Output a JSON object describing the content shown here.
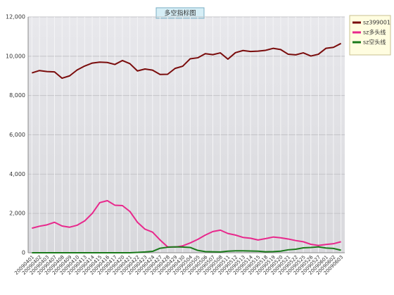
{
  "chart_data": {
    "type": "line",
    "title": "多空指标图",
    "categories": [
      "20090401",
      "20090402",
      "20090403",
      "20090407",
      "20090408",
      "20090409",
      "20090410",
      "20090413",
      "20090414",
      "20090415",
      "20090416",
      "20090417",
      "20090420",
      "20090421",
      "20090422",
      "20090423",
      "20090424",
      "20090427",
      "20090428",
      "20090429",
      "20090430",
      "20090504",
      "20090505",
      "20090506",
      "20090507",
      "20090508",
      "20090511",
      "20090512",
      "20090513",
      "20090514",
      "20090515",
      "20090518",
      "20090519",
      "20090520",
      "20090521",
      "20090522",
      "20090525",
      "20090526",
      "20090527",
      "20090601",
      "20090602",
      "20090603"
    ],
    "series": [
      {
        "name": "sz399001",
        "color": "#7a0c0c",
        "values": [
          9150,
          9270,
          9220,
          9200,
          8880,
          9000,
          9300,
          9500,
          9650,
          9700,
          9680,
          9580,
          9780,
          9620,
          9250,
          9350,
          9290,
          9070,
          9080,
          9380,
          9490,
          9870,
          9920,
          10130,
          10080,
          10170,
          9850,
          10180,
          10290,
          10240,
          10260,
          10300,
          10400,
          10340,
          10100,
          10070,
          10170,
          10010,
          10100,
          10400,
          10450,
          10650
        ]
      },
      {
        "name": "sz多头线",
        "color": "#e8288c",
        "values": [
          1250,
          1350,
          1420,
          1550,
          1360,
          1300,
          1400,
          1620,
          2000,
          2550,
          2650,
          2420,
          2400,
          2100,
          1550,
          1200,
          1050,
          650,
          300,
          290,
          350,
          500,
          680,
          900,
          1080,
          1150,
          980,
          900,
          780,
          740,
          650,
          720,
          800,
          760,
          700,
          620,
          560,
          430,
          370,
          420,
          460,
          560
        ]
      },
      {
        "name": "sz空头线",
        "color": "#1a7a1a",
        "values": [
          0,
          0,
          0,
          0,
          0,
          0,
          0,
          0,
          0,
          0,
          0,
          0,
          0,
          0,
          20,
          40,
          70,
          230,
          280,
          300,
          290,
          270,
          120,
          60,
          50,
          40,
          80,
          100,
          100,
          90,
          80,
          50,
          60,
          80,
          150,
          180,
          250,
          270,
          300,
          240,
          220,
          130
        ]
      }
    ],
    "ylim": [
      0,
      12000
    ],
    "yticks": [
      0,
      {
        "value": 2000,
        "label": "2,000"
      },
      {
        "value": 4000,
        "label": "4,000"
      },
      {
        "value": 6000,
        "label": "6,000"
      },
      {
        "value": 8000,
        "label": "8,000"
      },
      {
        "value": 10000,
        "label": "10,000"
      },
      {
        "value": 12000,
        "label": "12,000"
      }
    ],
    "grid": true
  }
}
